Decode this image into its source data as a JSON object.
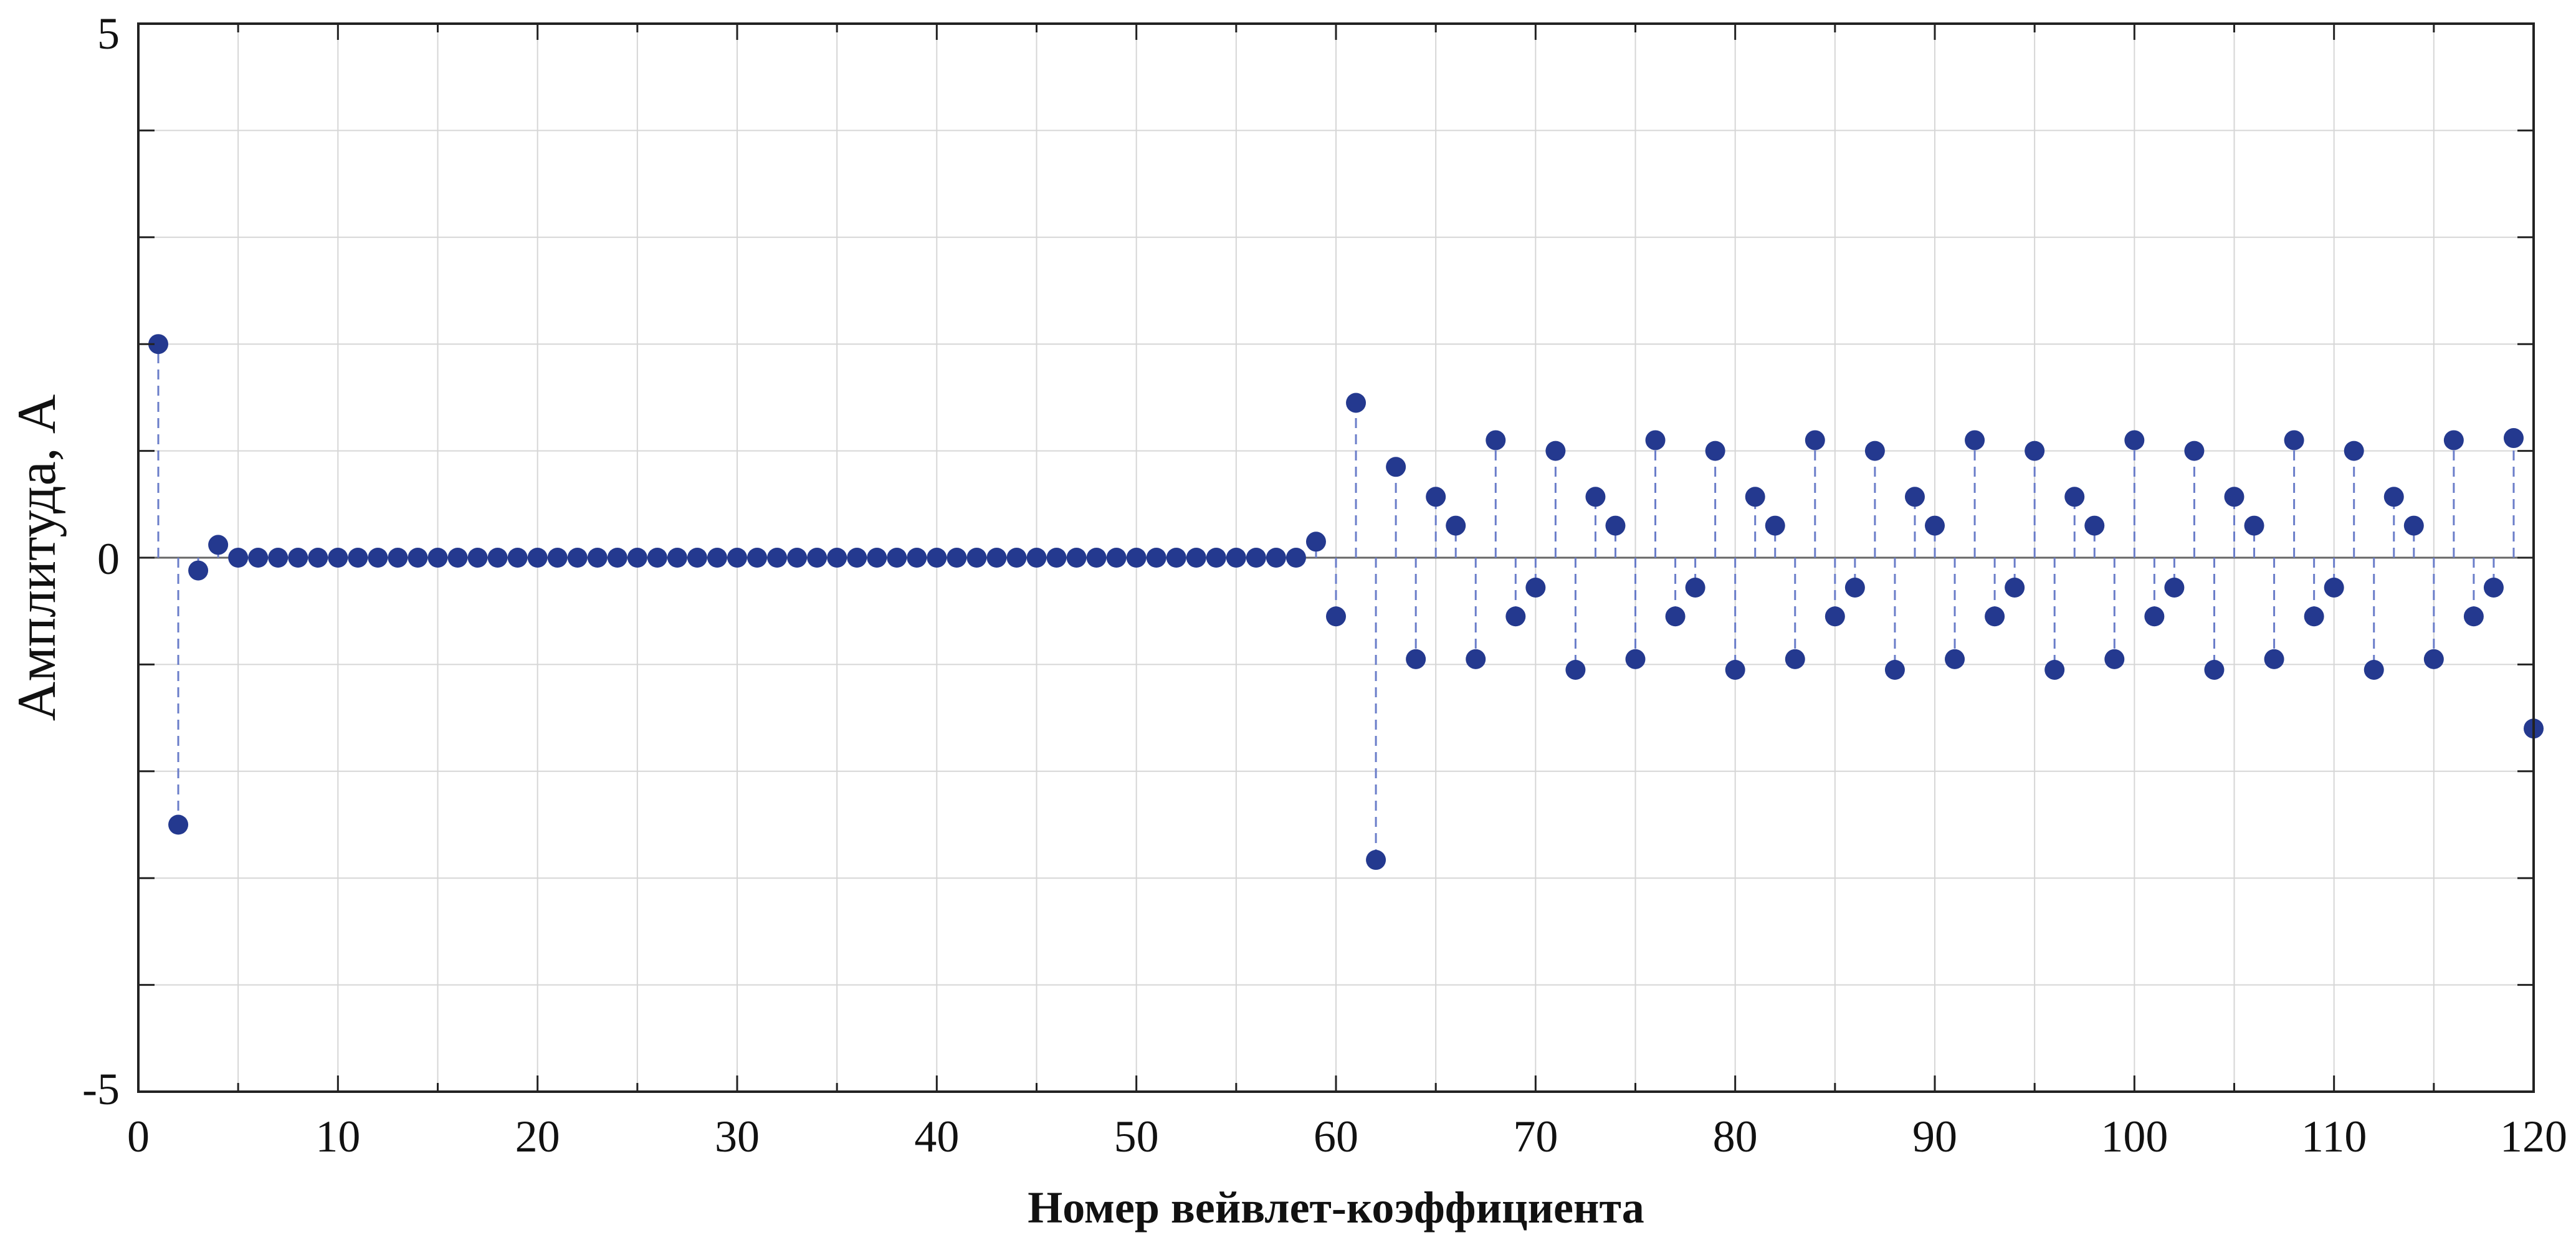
{
  "chart_data": {
    "type": "stem",
    "xlabel": "Номер вейвлет-коэффициента",
    "ylabel": "Амплитуда, А",
    "xlim": [
      0,
      120
    ],
    "ylim": [
      -5,
      5
    ],
    "xticks": [
      "0",
      "10",
      "20",
      "30",
      "40",
      "50",
      "60",
      "70",
      "80",
      "90",
      "100",
      "110",
      "120"
    ],
    "yticks": [
      "5",
      "0",
      "-5"
    ],
    "grid": true,
    "colors": {
      "marker": "#24398f",
      "stem": "#6a7dc9",
      "grid": "#d6d6d6",
      "axis": "#222222"
    },
    "series": [
      {
        "x": [
          1,
          2,
          3,
          4,
          5,
          6,
          7,
          8,
          9,
          10,
          11,
          12,
          13,
          14,
          15,
          16,
          17,
          18,
          19,
          20,
          21,
          22,
          23,
          24,
          25,
          26,
          27,
          28,
          29,
          30,
          31,
          32,
          33,
          34,
          35,
          36,
          37,
          38,
          39,
          40,
          41,
          42,
          43,
          44,
          45,
          46,
          47,
          48,
          49,
          50,
          51,
          52,
          53,
          54,
          55,
          56,
          57,
          58,
          59,
          60,
          61,
          62,
          63,
          64,
          65,
          66,
          67,
          68,
          69,
          70,
          71,
          72,
          73,
          74,
          75,
          76,
          77,
          78,
          79,
          80,
          81,
          82,
          83,
          84,
          85,
          86,
          87,
          88,
          89,
          90,
          91,
          92,
          93,
          94,
          95,
          96,
          97,
          98,
          99,
          100,
          101,
          102,
          103,
          104,
          105,
          106,
          107,
          108,
          109,
          110,
          111,
          112,
          113,
          114,
          115,
          116,
          117,
          118,
          119,
          120
        ],
        "y": [
          2.0,
          -2.5,
          -0.12,
          0.12,
          0,
          0,
          0,
          0,
          0,
          0,
          0,
          0,
          0,
          0,
          0,
          0,
          0,
          0,
          0,
          0,
          0,
          0,
          0,
          0,
          0,
          0,
          0,
          0,
          0,
          0,
          0,
          0,
          0,
          0,
          0,
          0,
          0,
          0,
          0,
          0,
          0,
          0,
          0,
          0,
          0,
          0,
          0,
          0,
          0,
          0,
          0,
          0,
          0,
          0,
          0,
          0,
          0,
          0,
          0.15,
          -0.55,
          1.45,
          -2.83,
          0.85,
          -0.95,
          0.57,
          0.3,
          -0.95,
          1.1,
          -0.55,
          -0.28,
          1.0,
          -1.05,
          0.57,
          0.3,
          -0.95,
          1.1,
          -0.55,
          -0.28,
          1.0,
          -1.05,
          0.57,
          0.3,
          -0.95,
          1.1,
          -0.55,
          -0.28,
          1.0,
          -1.05,
          0.57,
          0.3,
          -0.95,
          1.1,
          -0.55,
          -0.28,
          1.0,
          -1.05,
          0.57,
          0.3,
          -0.95,
          1.1,
          -0.55,
          -0.28,
          1.0,
          -1.05,
          0.57,
          0.3,
          -0.95,
          1.1,
          -0.55,
          -0.28,
          1.0,
          -1.05,
          0.57,
          0.3,
          -0.95,
          1.1,
          -0.55,
          -0.28,
          1.12,
          -1.6
        ]
      }
    ]
  }
}
